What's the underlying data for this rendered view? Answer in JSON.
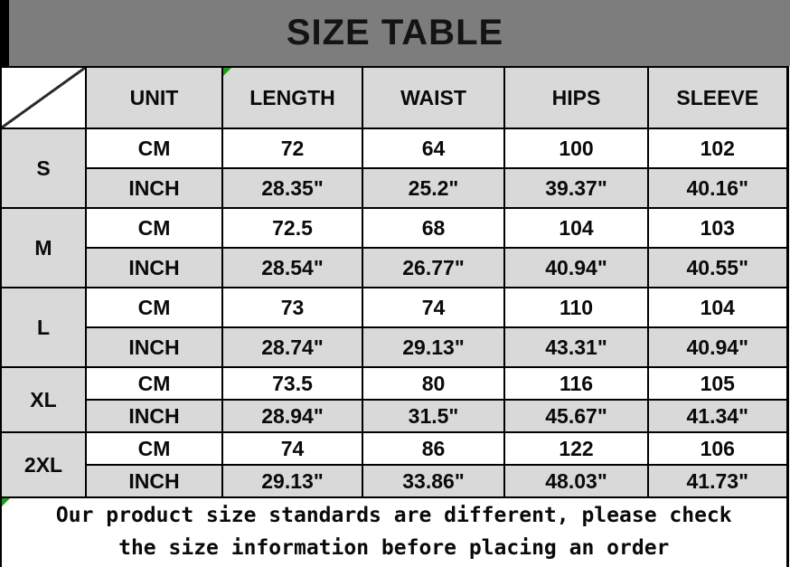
{
  "title": "SIZE TABLE",
  "table": {
    "columns": [
      "UNIT",
      "LENGTH",
      "WAIST",
      "HIPS",
      "SLEEVE"
    ],
    "unit_labels": {
      "cm": "CM",
      "inch": "INCH"
    },
    "rows": [
      {
        "size": "S",
        "cm": [
          "72",
          "64",
          "100",
          "102"
        ],
        "inch": [
          "28.35\"",
          "25.2\"",
          "39.37\"",
          "40.16\""
        ]
      },
      {
        "size": "M",
        "cm": [
          "72.5",
          "68",
          "104",
          "103"
        ],
        "inch": [
          "28.54\"",
          "26.77\"",
          "40.94\"",
          "40.55\""
        ]
      },
      {
        "size": "L",
        "cm": [
          "73",
          "74",
          "110",
          "104"
        ],
        "inch": [
          "28.74\"",
          "29.13\"",
          "43.31\"",
          "40.94\""
        ]
      },
      {
        "size": "XL",
        "cm": [
          "73.5",
          "80",
          "116",
          "105"
        ],
        "inch": [
          "28.94\"",
          "31.5\"",
          "45.67\"",
          "41.34\""
        ]
      },
      {
        "size": "2XL",
        "cm": [
          "74",
          "86",
          "122",
          "106"
        ],
        "inch": [
          "29.13\"",
          "33.86\"",
          "48.03\"",
          "41.73\""
        ]
      }
    ]
  },
  "footer": {
    "note": "Our product size standards are different, please check the size information before placing an order"
  },
  "colors": {
    "title_bg": "#7d7d7d",
    "cell_gray": "#d9d9d9",
    "border": "#000000",
    "marker_green": "#1e9b1e"
  }
}
